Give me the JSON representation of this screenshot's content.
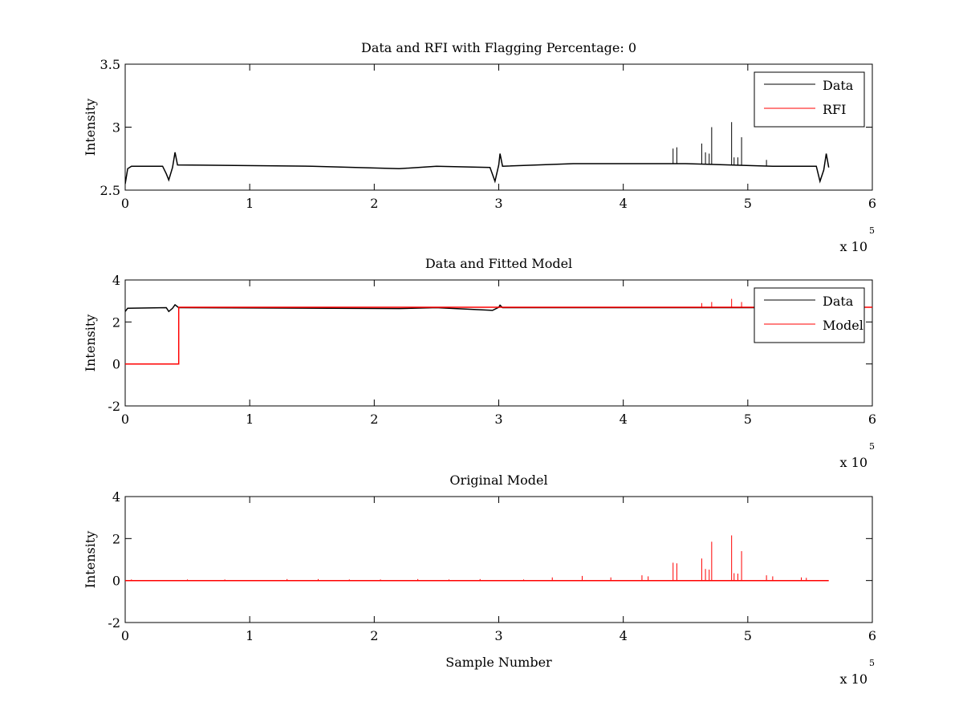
{
  "figure": {
    "background": "#ffffff",
    "data_color": "#000000",
    "rfi_color": "#ff0000"
  },
  "chart_data": [
    {
      "type": "line",
      "title": "Data and RFI with Flagging Percentage: 0",
      "xlabel": "",
      "ylabel": "Intensity",
      "xlim": [
        0,
        6
      ],
      "ylim": [
        2.5,
        3.5
      ],
      "x_ticks": [
        "0",
        "1",
        "2",
        "3",
        "4",
        "5",
        "6"
      ],
      "y_ticks": [
        "2.5",
        "3",
        "3.5"
      ],
      "x_exponent": {
        "base": "x 10",
        "power": "5"
      },
      "legend": {
        "position": "top-right",
        "entries": [
          "Data",
          "RFI"
        ]
      },
      "series": [
        {
          "name": "Data",
          "color": "#000000",
          "points": [
            [
              0,
              2.55
            ],
            [
              0.02,
              2.67
            ],
            [
              0.05,
              2.69
            ],
            [
              0.3,
              2.69
            ],
            [
              0.33,
              2.63
            ],
            [
              0.35,
              2.58
            ],
            [
              0.38,
              2.68
            ],
            [
              0.4,
              2.8
            ],
            [
              0.42,
              2.7
            ],
            [
              1.5,
              2.69
            ],
            [
              2.2,
              2.67
            ],
            [
              2.5,
              2.69
            ],
            [
              2.93,
              2.68
            ],
            [
              2.97,
              2.57
            ],
            [
              3.0,
              2.7
            ],
            [
              3.01,
              2.79
            ],
            [
              3.03,
              2.69
            ],
            [
              3.6,
              2.71
            ],
            [
              4.5,
              2.71
            ],
            [
              5.2,
              2.69
            ],
            [
              5.55,
              2.69
            ],
            [
              5.58,
              2.57
            ],
            [
              5.61,
              2.66
            ],
            [
              5.63,
              2.79
            ],
            [
              5.65,
              2.68
            ]
          ],
          "spikes": [
            [
              4.4,
              2.83
            ],
            [
              4.43,
              2.84
            ],
            [
              4.63,
              2.87
            ],
            [
              4.66,
              2.8
            ],
            [
              4.69,
              2.79
            ],
            [
              4.71,
              3.0
            ],
            [
              4.87,
              3.04
            ],
            [
              4.89,
              2.76
            ],
            [
              4.92,
              2.76
            ],
            [
              4.95,
              2.92
            ],
            [
              5.15,
              2.74
            ]
          ]
        }
      ]
    },
    {
      "type": "line",
      "title": "Data and Fitted Model",
      "xlabel": "",
      "ylabel": "Intensity",
      "xlim": [
        0,
        6
      ],
      "ylim": [
        -2,
        4
      ],
      "x_ticks": [
        "0",
        "1",
        "2",
        "3",
        "4",
        "5",
        "6"
      ],
      "y_ticks": [
        "-2",
        "0",
        "2",
        "4"
      ],
      "x_exponent": {
        "base": "x 10",
        "power": "5"
      },
      "legend": {
        "position": "top-right",
        "entries": [
          "Data",
          "Model"
        ]
      },
      "series": [
        {
          "name": "Data",
          "color": "#000000",
          "points": [
            [
              0,
              2.5
            ],
            [
              0.02,
              2.65
            ],
            [
              0.33,
              2.68
            ],
            [
              0.35,
              2.5
            ],
            [
              0.38,
              2.65
            ],
            [
              0.4,
              2.82
            ],
            [
              0.43,
              2.68
            ],
            [
              2.2,
              2.64
            ],
            [
              2.5,
              2.68
            ],
            [
              2.95,
              2.55
            ],
            [
              3.0,
              2.7
            ],
            [
              3.01,
              2.8
            ],
            [
              3.03,
              2.68
            ],
            [
              5.65,
              2.68
            ]
          ]
        },
        {
          "name": "Model",
          "color": "#ff0000",
          "points": [
            [
              0,
              0
            ],
            [
              0.43,
              0
            ],
            [
              0.43,
              2.7
            ],
            [
              6.0,
              2.7
            ]
          ],
          "spikes": [
            [
              4.63,
              2.9
            ],
            [
              4.71,
              2.95
            ],
            [
              4.87,
              3.1
            ],
            [
              4.95,
              2.95
            ]
          ]
        }
      ]
    },
    {
      "type": "line",
      "title": "Original Model",
      "xlabel": "Sample Number",
      "ylabel": "Intensity",
      "xlim": [
        0,
        6
      ],
      "ylim": [
        -2,
        4
      ],
      "x_ticks": [
        "0",
        "1",
        "2",
        "3",
        "4",
        "5",
        "6"
      ],
      "y_ticks": [
        "-2",
        "0",
        "2",
        "4"
      ],
      "x_exponent": {
        "base": "x 10",
        "power": "5"
      },
      "series": [
        {
          "name": "Model",
          "color": "#ff0000",
          "points": [
            [
              0,
              0
            ],
            [
              5.65,
              0
            ]
          ],
          "spikes": [
            [
              0.05,
              0.05
            ],
            [
              0.5,
              0.05
            ],
            [
              0.8,
              0.05
            ],
            [
              1.3,
              0.07
            ],
            [
              1.55,
              0.07
            ],
            [
              1.8,
              0.05
            ],
            [
              2.05,
              0.05
            ],
            [
              2.35,
              0.07
            ],
            [
              2.6,
              0.05
            ],
            [
              2.85,
              0.07
            ],
            [
              3.2,
              0.05
            ],
            [
              3.43,
              0.15
            ],
            [
              3.67,
              0.22
            ],
            [
              3.9,
              0.15
            ],
            [
              4.15,
              0.25
            ],
            [
              4.2,
              0.2
            ],
            [
              4.4,
              0.85
            ],
            [
              4.43,
              0.82
            ],
            [
              4.63,
              1.05
            ],
            [
              4.66,
              0.55
            ],
            [
              4.69,
              0.52
            ],
            [
              4.71,
              1.85
            ],
            [
              4.87,
              2.15
            ],
            [
              4.89,
              0.35
            ],
            [
              4.92,
              0.33
            ],
            [
              4.95,
              1.4
            ],
            [
              5.15,
              0.25
            ],
            [
              5.2,
              0.2
            ],
            [
              5.43,
              0.15
            ],
            [
              5.47,
              0.13
            ]
          ]
        }
      ]
    }
  ]
}
